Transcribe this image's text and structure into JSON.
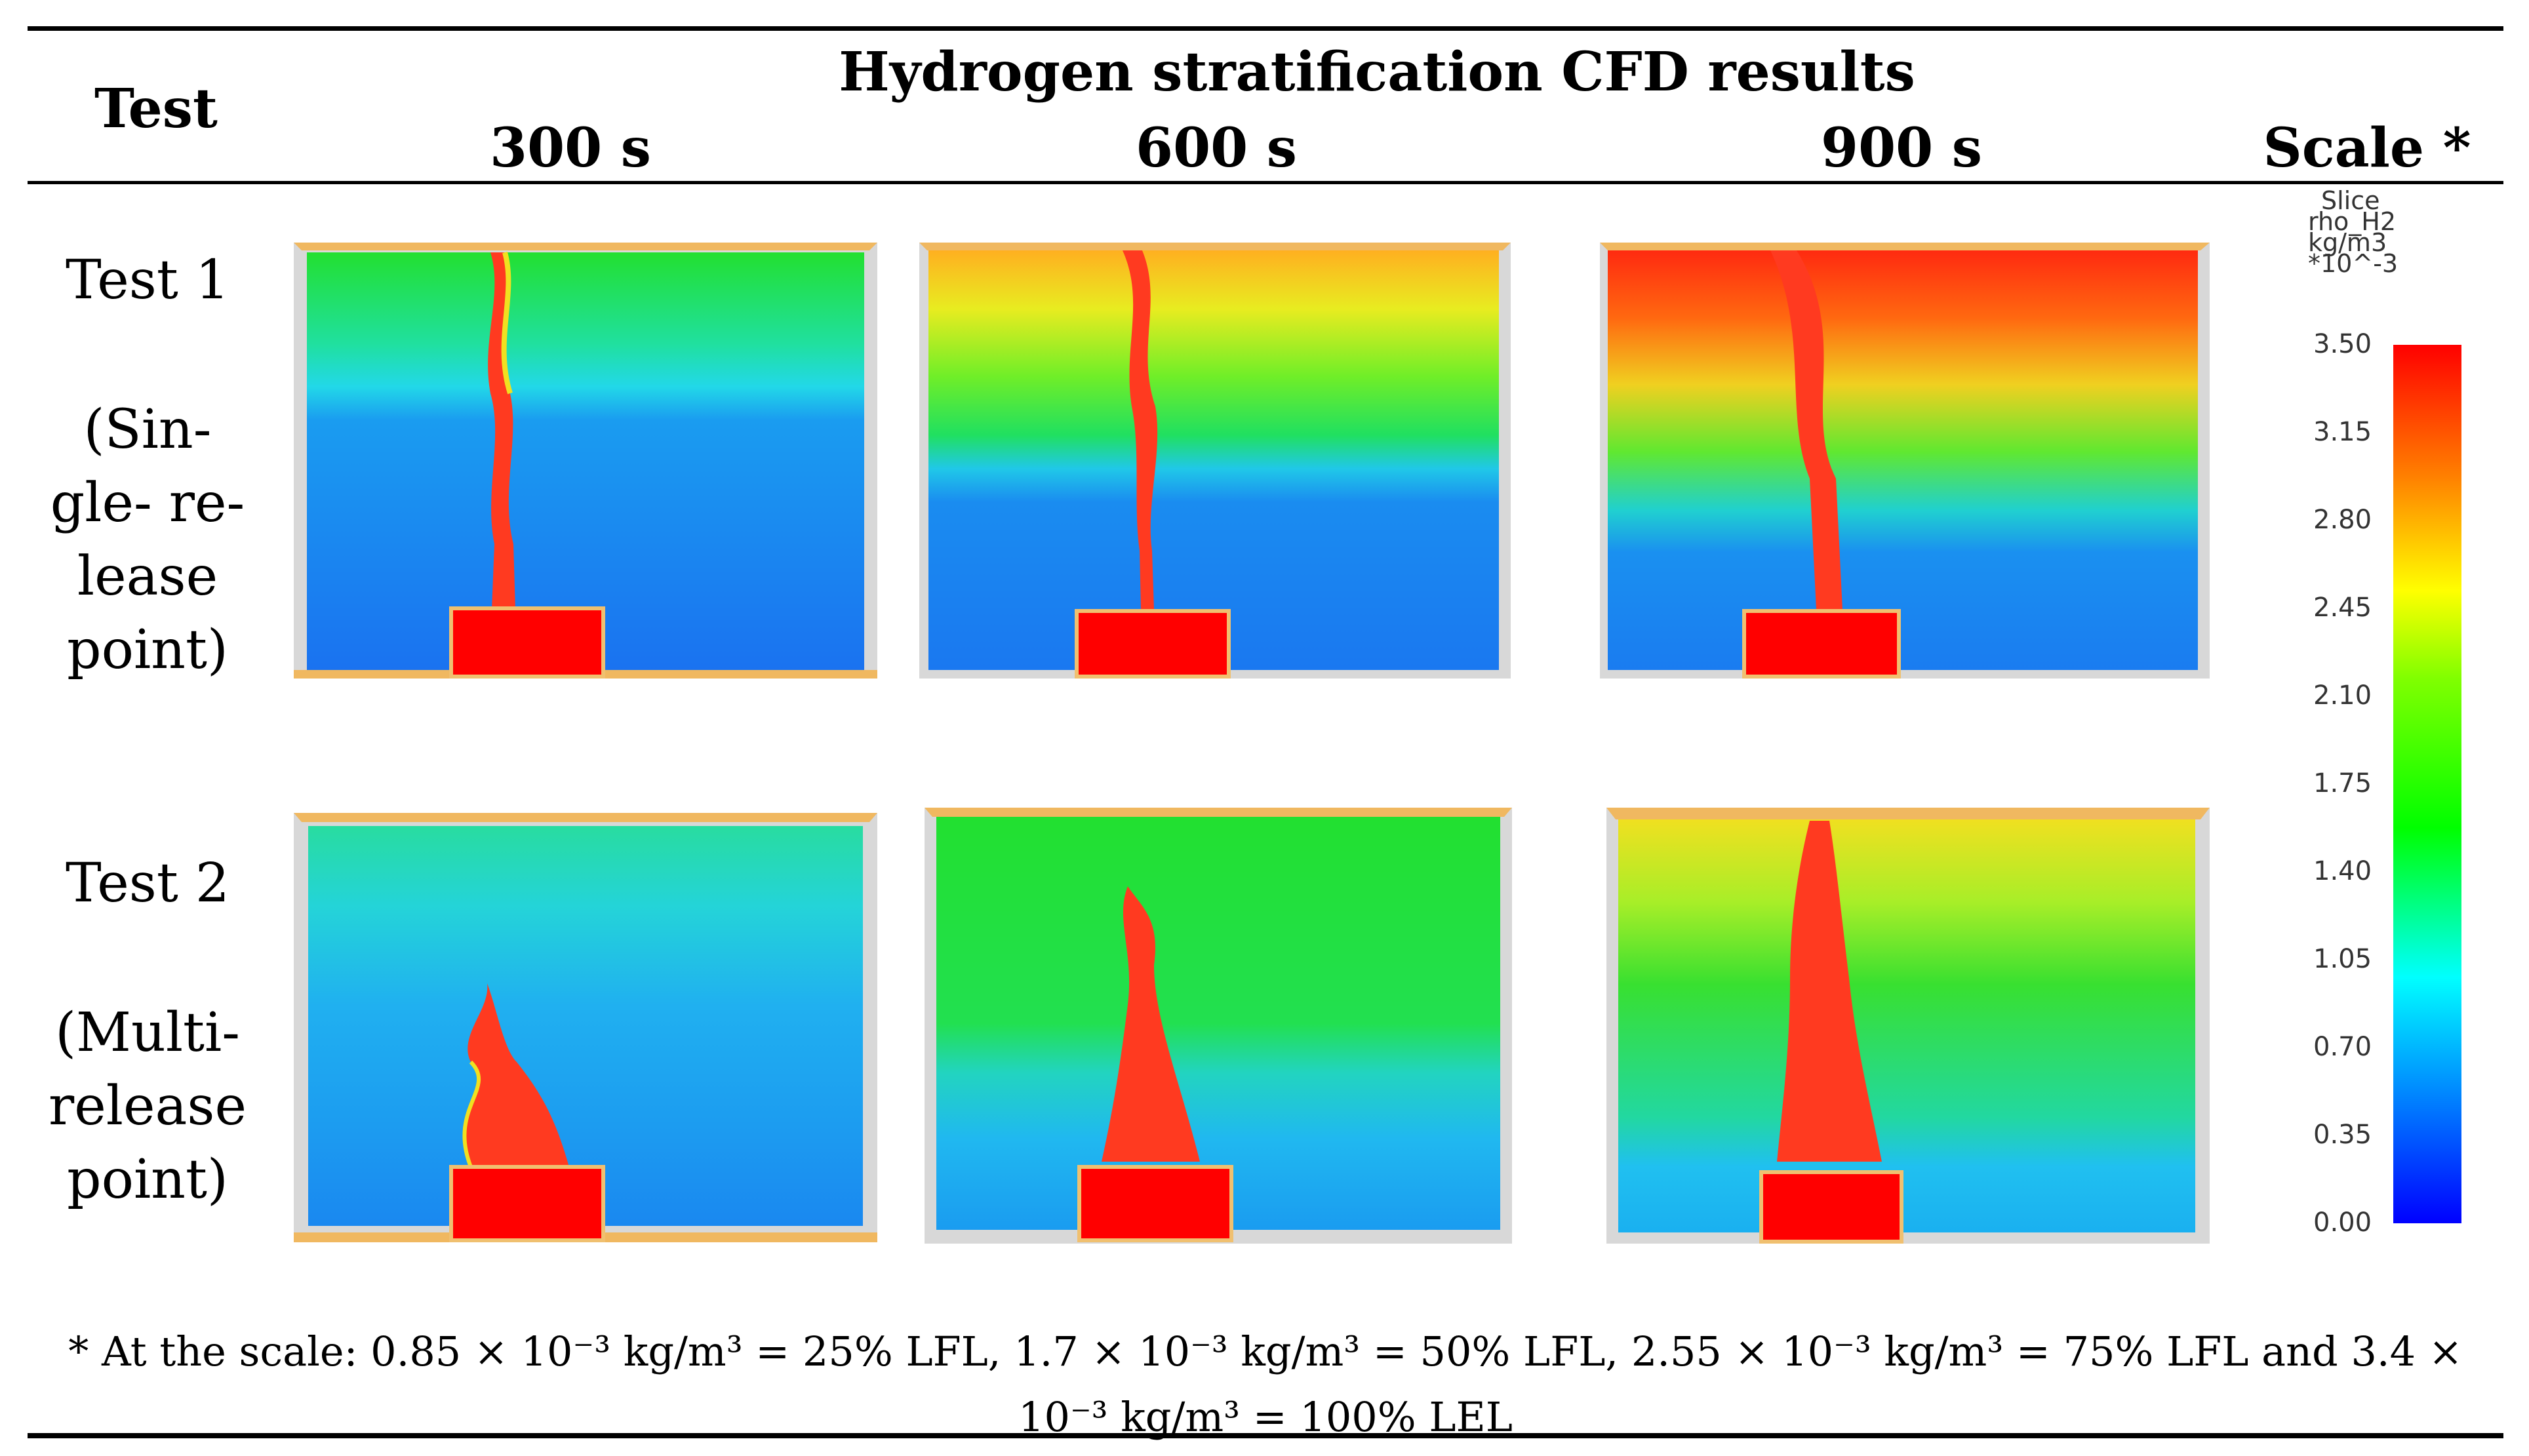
{
  "table": {
    "header_test": "Test",
    "header_title": "Hydrogen stratification CFD results",
    "times": [
      "300 s",
      "600 s",
      "900 s"
    ],
    "header_scale": "Scale *"
  },
  "rows": [
    {
      "test": "Test 1",
      "desc_lines": [
        "(Sin-",
        "gle- re-",
        "lease",
        "point)"
      ]
    },
    {
      "test": "Test 2",
      "desc_lines": [
        "(Multi-",
        "release",
        "point)"
      ]
    }
  ],
  "legend": {
    "title_lines": [
      "Slice",
      "rho_H2",
      "kg/m3",
      "*10^-3"
    ],
    "ticks": [
      "3.50",
      "3.15",
      "2.80",
      "2.45",
      "2.10",
      "1.75",
      "1.40",
      "1.05",
      "0.70",
      "0.35",
      "0.00"
    ],
    "colors": {
      "max": "#ff0000",
      "high": "#ffa500",
      "mid_high": "#ffff00",
      "mid": "#00ff00",
      "low_mid": "#00ffff",
      "low": "#0070ff",
      "min": "#0000ff"
    }
  },
  "footnote": "* At the scale: 0.85 × 10⁻³ kg/m³ = 25% LFL, 1.7 × 10⁻³ kg/m³ = 50% LFL, 2.55 × 10⁻³ kg/m³ = 75% LFL and 3.4 × 10⁻³ kg/m³ = 100% LEL",
  "panels": [
    {
      "row": "Test 1",
      "time": "300 s"
    },
    {
      "row": "Test 1",
      "time": "600 s"
    },
    {
      "row": "Test 1",
      "time": "900 s"
    },
    {
      "row": "Test 2",
      "time": "300 s"
    },
    {
      "row": "Test 2",
      "time": "600 s"
    },
    {
      "row": "Test 2",
      "time": "900 s"
    }
  ]
}
